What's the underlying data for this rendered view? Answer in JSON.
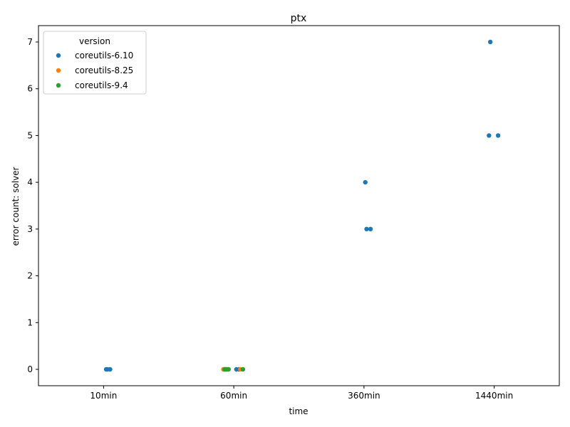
{
  "chart_data": {
    "type": "scatter",
    "title": "ptx",
    "xlabel": "time",
    "ylabel": "error count: solver",
    "categories": [
      "10min",
      "60min",
      "360min",
      "1440min"
    ],
    "ylim": [
      -0.35,
      7.35
    ],
    "yticks": [
      0,
      1,
      2,
      3,
      4,
      5,
      6,
      7
    ],
    "grid": false,
    "legend": {
      "title": "version",
      "position": "top-left"
    },
    "series": [
      {
        "name": "coreutils-6.10",
        "color": "#1f77b4",
        "points": [
          {
            "category": "10min",
            "jitter": 0.02,
            "y": 0
          },
          {
            "category": "10min",
            "jitter": 0.03,
            "y": 0
          },
          {
            "category": "10min",
            "jitter": 0.05,
            "y": 0
          },
          {
            "category": "60min",
            "jitter": -0.06,
            "y": 0
          },
          {
            "category": "60min",
            "jitter": 0.02,
            "y": 0
          },
          {
            "category": "60min",
            "jitter": 0.04,
            "y": 0
          },
          {
            "category": "360min",
            "jitter": 0.01,
            "y": 4
          },
          {
            "category": "360min",
            "jitter": 0.02,
            "y": 3
          },
          {
            "category": "360min",
            "jitter": 0.05,
            "y": 3
          },
          {
            "category": "1440min",
            "jitter": -0.04,
            "y": 5
          },
          {
            "category": "1440min",
            "jitter": -0.03,
            "y": 7
          },
          {
            "category": "1440min",
            "jitter": 0.03,
            "y": 5
          }
        ]
      },
      {
        "name": "coreutils-8.25",
        "color": "#ff7f0e",
        "points": [
          {
            "category": "60min",
            "jitter": -0.08,
            "y": 0
          },
          {
            "category": "60min",
            "jitter": -0.07,
            "y": 0
          },
          {
            "category": "60min",
            "jitter": 0.05,
            "y": 0
          }
        ]
      },
      {
        "name": "coreutils-9.4",
        "color": "#2ca02c",
        "points": [
          {
            "category": "60min",
            "jitter": -0.07,
            "y": 0
          },
          {
            "category": "60min",
            "jitter": -0.06,
            "y": 0
          },
          {
            "category": "60min",
            "jitter": -0.05,
            "y": 0
          },
          {
            "category": "60min",
            "jitter": -0.04,
            "y": 0
          },
          {
            "category": "60min",
            "jitter": 0.07,
            "y": 0
          }
        ]
      }
    ]
  }
}
